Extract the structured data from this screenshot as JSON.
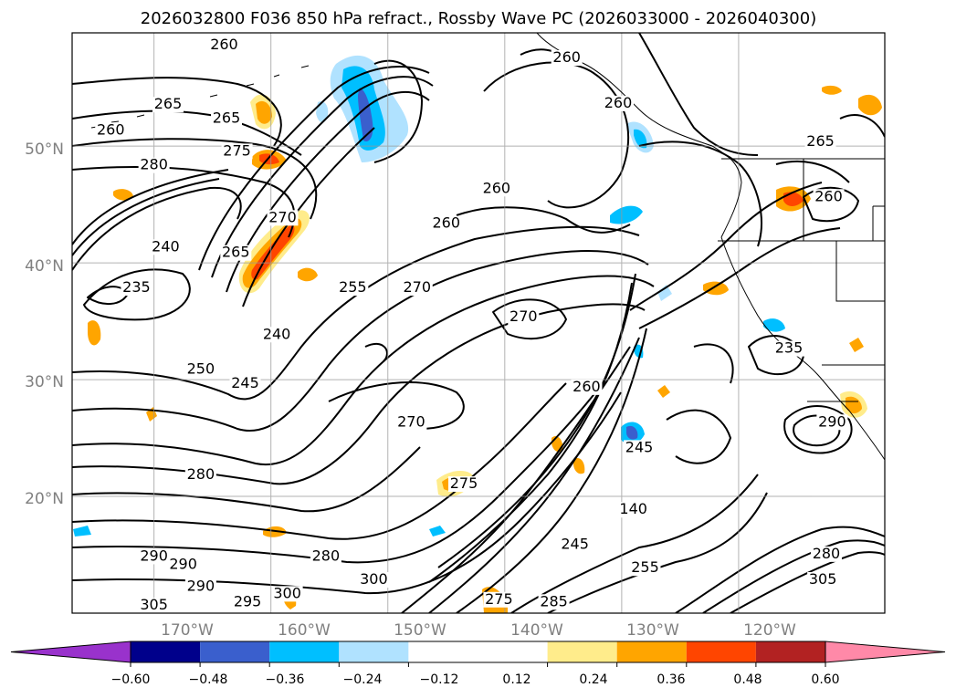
{
  "chart_data": {
    "type": "map-contour",
    "title": "2026032800 F036 850 hPa refract., Rossby Wave PC (2026033000 - 2026040300)",
    "lat_labels": [
      "50°N",
      "40°N",
      "30°N",
      "20°N"
    ],
    "lon_labels": [
      "170°W",
      "160°W",
      "150°W",
      "140°W",
      "130°W",
      "120°W"
    ],
    "lat_values": [
      50,
      40,
      30,
      20
    ],
    "lon_values": [
      -170,
      -160,
      -150,
      -140,
      -130,
      -120
    ],
    "extent": {
      "lon": [
        -177,
        -107.5
      ],
      "lat": [
        10,
        59.7
      ]
    },
    "colorbar": {
      "ticks": [
        "−0.60",
        "−0.48",
        "−0.36",
        "−0.24",
        "−0.12",
        "0.12",
        "0.24",
        "0.36",
        "0.48",
        "0.60"
      ],
      "levels": [
        -0.6,
        -0.48,
        -0.36,
        -0.24,
        -0.12,
        0.12,
        0.24,
        0.36,
        0.48,
        0.6
      ],
      "colors": [
        "#9932cc",
        "#00008b",
        "#3a5fcd",
        "#00bfff",
        "#b0e2ff",
        "#ffffff",
        "#ffec8b",
        "#ffa500",
        "#ff4500",
        "#b22222",
        "#ff89a8"
      ]
    },
    "contour_labels": [
      {
        "text": "260",
        "lon": -164,
        "lat": 58.3
      },
      {
        "text": "265",
        "lon": -168.8,
        "lat": 53.2
      },
      {
        "text": "265",
        "lon": -163.8,
        "lat": 52.0
      },
      {
        "text": "260",
        "lon": -173.7,
        "lat": 51.0
      },
      {
        "text": "275",
        "lon": -162.9,
        "lat": 49.2
      },
      {
        "text": "280",
        "lon": -170.0,
        "lat": 48.0
      },
      {
        "text": "270",
        "lon": -159.0,
        "lat": 43.5
      },
      {
        "text": "265",
        "lon": -163.0,
        "lat": 40.5
      },
      {
        "text": "240",
        "lon": -169.0,
        "lat": 41.0
      },
      {
        "text": "235",
        "lon": -171.5,
        "lat": 37.5
      },
      {
        "text": "255",
        "lon": -153.0,
        "lat": 37.5
      },
      {
        "text": "240",
        "lon": -159.5,
        "lat": 33.5
      },
      {
        "text": "250",
        "lon": -166.0,
        "lat": 30.5
      },
      {
        "text": "245",
        "lon": -162.2,
        "lat": 29.3
      },
      {
        "text": "270",
        "lon": -147.5,
        "lat": 37.5
      },
      {
        "text": "260",
        "lon": -145.0,
        "lat": 43.0
      },
      {
        "text": "260",
        "lon": -140.7,
        "lat": 46.0
      },
      {
        "text": "260",
        "lon": -134.7,
        "lat": 57.2
      },
      {
        "text": "260",
        "lon": -130.3,
        "lat": 53.3
      },
      {
        "text": "265",
        "lon": -113.0,
        "lat": 50.0
      },
      {
        "text": "260",
        "lon": -112.3,
        "lat": 45.3
      },
      {
        "text": "270",
        "lon": -138.4,
        "lat": 35.0
      },
      {
        "text": "235",
        "lon": -115.7,
        "lat": 32.3
      },
      {
        "text": "260",
        "lon": -133.0,
        "lat": 29.0
      },
      {
        "text": "270",
        "lon": -148.0,
        "lat": 26.0
      },
      {
        "text": "245",
        "lon": -128.5,
        "lat": 23.8
      },
      {
        "text": "140",
        "lon": -129.0,
        "lat": 18.5
      },
      {
        "text": "245",
        "lon": -134.0,
        "lat": 15.5
      },
      {
        "text": "255",
        "lon": -128.0,
        "lat": 13.5
      },
      {
        "text": "280",
        "lon": -112.5,
        "lat": 14.7
      },
      {
        "text": "305",
        "lon": -112.8,
        "lat": 12.5
      },
      {
        "text": "280",
        "lon": -166.0,
        "lat": 21.5
      },
      {
        "text": "275",
        "lon": -143.5,
        "lat": 20.7
      },
      {
        "text": "290",
        "lon": -170.0,
        "lat": 14.5
      },
      {
        "text": "290",
        "lon": -167.5,
        "lat": 13.8
      },
      {
        "text": "290",
        "lon": -166.0,
        "lat": 11.9
      },
      {
        "text": "280",
        "lon": -155.3,
        "lat": 14.5
      },
      {
        "text": "300",
        "lon": -151.2,
        "lat": 12.5
      },
      {
        "text": "305",
        "lon": -170.0,
        "lat": 10.3
      },
      {
        "text": "295",
        "lon": -162.0,
        "lat": 10.6
      },
      {
        "text": "300",
        "lon": -158.6,
        "lat": 11.3
      },
      {
        "text": "275",
        "lon": -140.5,
        "lat": 10.8
      },
      {
        "text": "285",
        "lon": -135.8,
        "lat": 10.6
      },
      {
        "text": "290",
        "lon": -112.0,
        "lat": 26.0
      }
    ]
  }
}
